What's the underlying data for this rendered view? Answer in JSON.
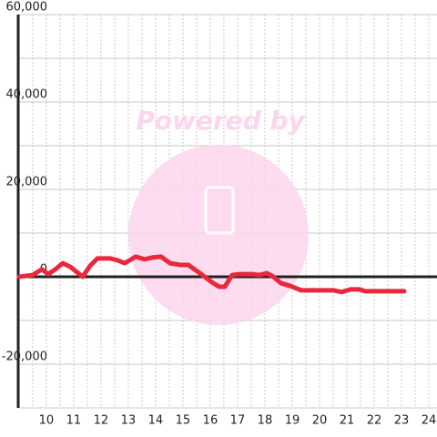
{
  "chart_data": {
    "type": "line",
    "annotation": "Powered by",
    "x": [
      9,
      9.5,
      9.83,
      10.07,
      10.33,
      10.6,
      10.87,
      11.33,
      11.6,
      11.87,
      12.33,
      12.6,
      12.87,
      13.27,
      13.6,
      13.87,
      14.2,
      14.53,
      14.93,
      15.2,
      15.67,
      16.07,
      16.33,
      16.53,
      16.8,
      17.07,
      17.53,
      17.8,
      18.07,
      18.27,
      18.6,
      18.93,
      19.33,
      20,
      20.53,
      20.8,
      21.13,
      21.47,
      21.67,
      22.2,
      23.1
    ],
    "series": [
      {
        "color": "#e8283c",
        "values": [
          0,
          400,
          1700,
          600,
          1700,
          3100,
          2300,
          0,
          2500,
          4200,
          4200,
          3800,
          3100,
          4600,
          4000,
          4400,
          4600,
          3100,
          2700,
          2700,
          600,
          -1300,
          -2300,
          -2300,
          400,
          600,
          600,
          400,
          800,
          200,
          -1500,
          -2100,
          -3100,
          -3100,
          -3100,
          -3500,
          -2900,
          -2900,
          -3300,
          -3300,
          -3300
        ]
      }
    ],
    "xlim": [
      8.97,
      24.3
    ],
    "xticks": [
      10,
      11,
      12,
      13,
      14,
      15,
      16,
      17,
      18,
      19,
      20,
      21,
      22,
      23,
      24
    ],
    "xgrid": [
      9.5,
      10,
      10.5,
      11,
      11.5,
      12,
      12.5,
      13,
      13.5,
      14,
      14.5,
      15,
      15.5,
      16,
      16.5,
      17,
      17.5,
      18,
      18.5,
      19,
      19.5,
      20,
      20.5,
      21,
      21.5,
      22,
      22.5,
      23,
      23.5,
      24
    ],
    "ylim": [
      -30000,
      60000
    ],
    "yticks": [
      {
        "value": -20000,
        "label": "-20,000"
      },
      0,
      {
        "value": 20000,
        "label": "20,000"
      },
      {
        "value": 40000,
        "label": "40,000"
      },
      {
        "value": 60000,
        "label": "60,000"
      }
    ],
    "ygrid": [
      -30000,
      -20000,
      -10000,
      0,
      10000,
      20000,
      30000,
      40000,
      50000,
      60000
    ],
    "grid": true
  }
}
